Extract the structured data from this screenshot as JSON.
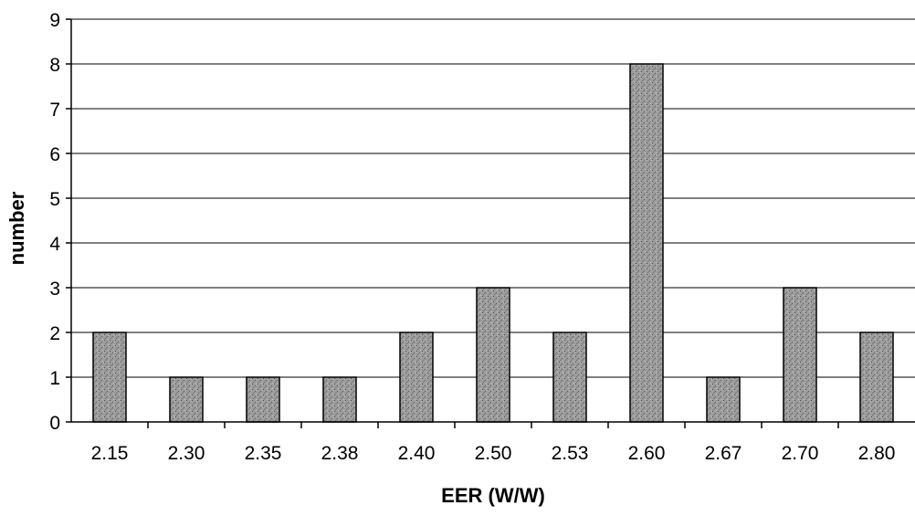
{
  "chart_data": {
    "type": "bar",
    "title": "",
    "xlabel": "EER (W/W)",
    "ylabel": "number",
    "categories": [
      "2.15",
      "2.30",
      "2.35",
      "2.38",
      "2.40",
      "2.50",
      "2.53",
      "2.60",
      "2.67",
      "2.70",
      "2.80"
    ],
    "values": [
      2,
      1,
      1,
      1,
      2,
      3,
      2,
      8,
      1,
      3,
      2
    ],
    "ylim": [
      0,
      9
    ],
    "yticks": [
      "0",
      "1",
      "2",
      "3",
      "4",
      "5",
      "6",
      "7",
      "8",
      "9"
    ],
    "grid": true,
    "legend": "none",
    "colors": {
      "bar_fill": "#9a9a9a",
      "bar_outline": "#000000",
      "grid": "#000000"
    }
  }
}
